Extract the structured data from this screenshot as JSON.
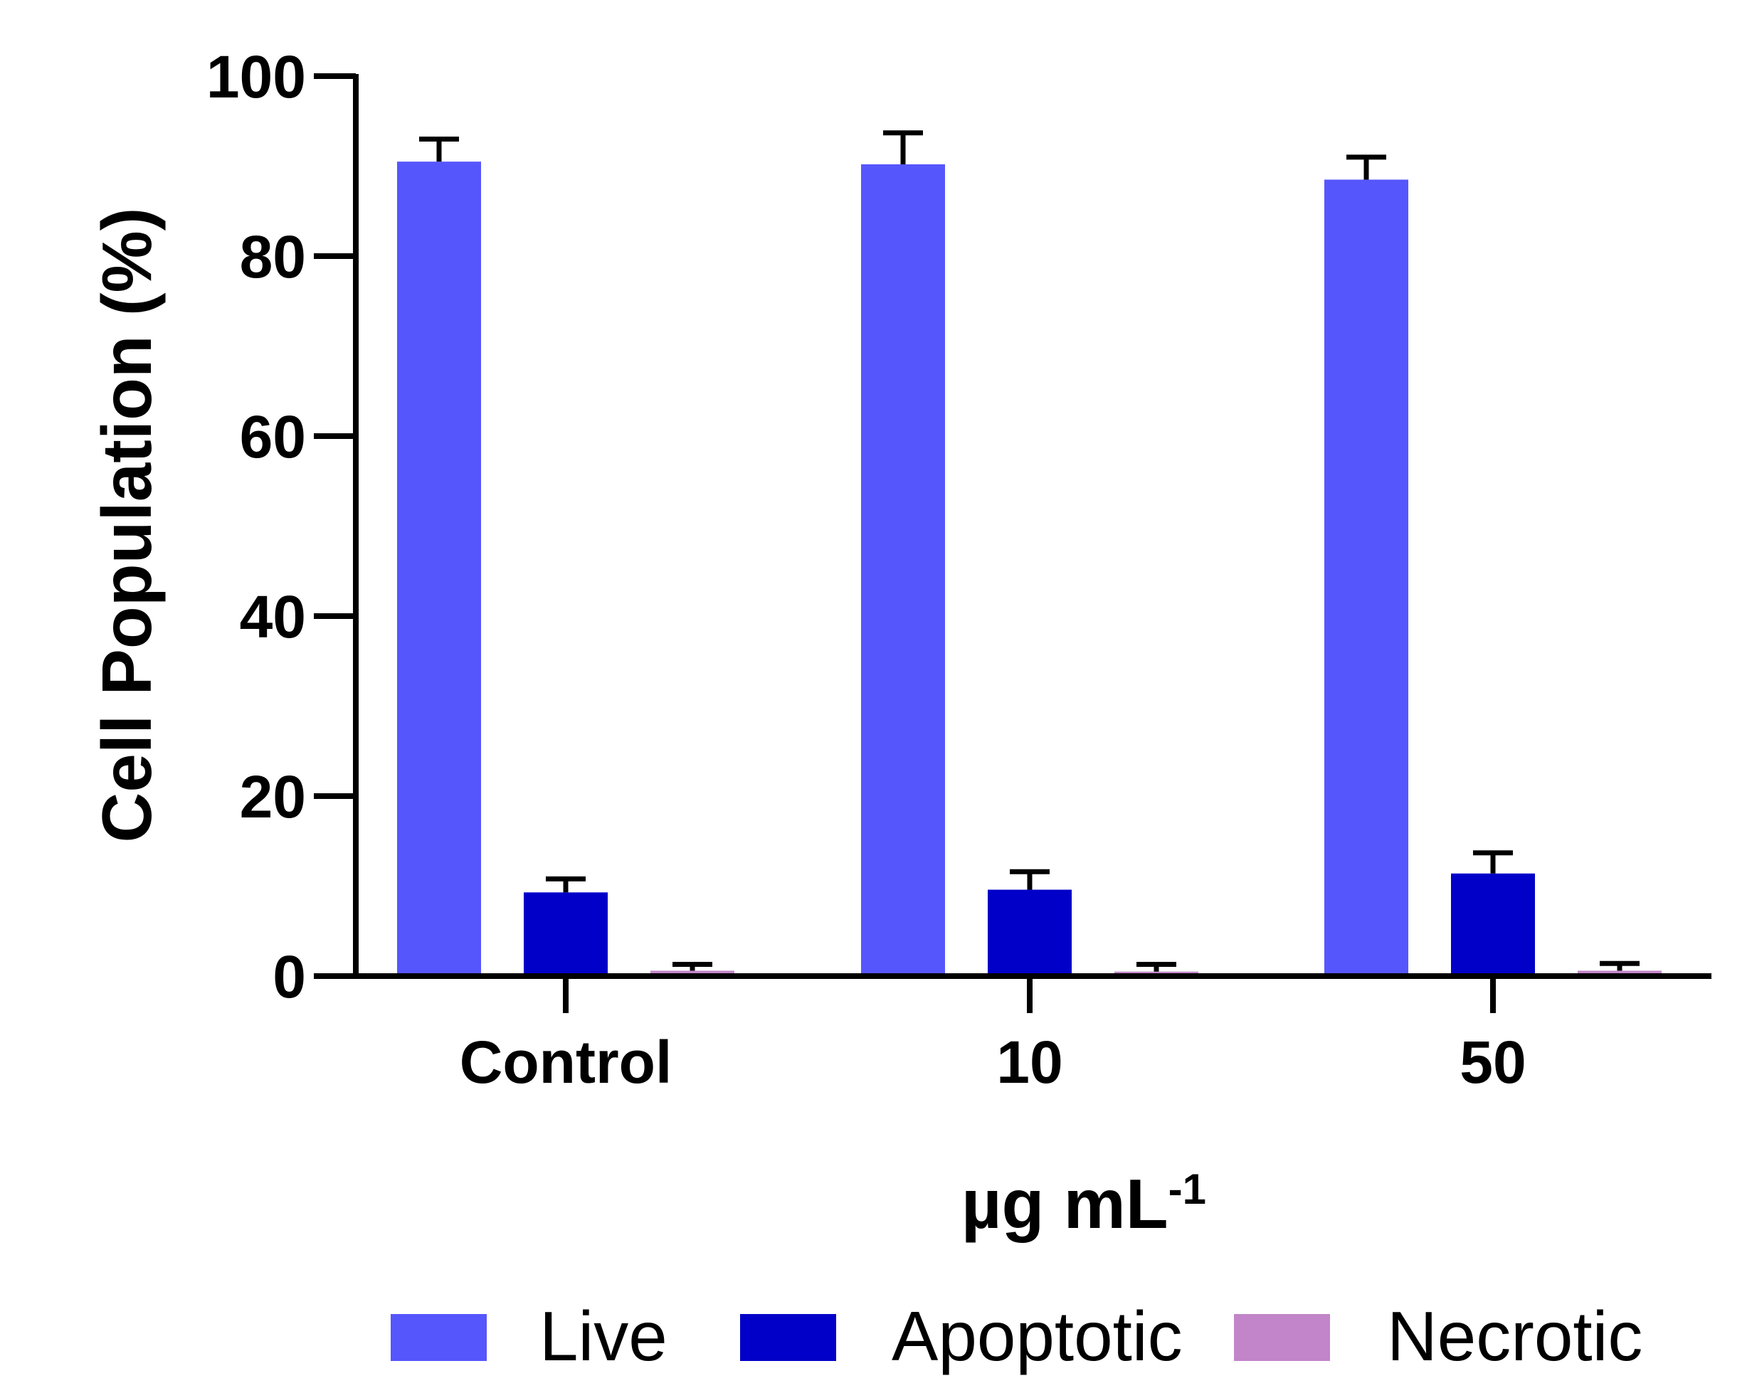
{
  "chart_data": {
    "type": "bar",
    "title": "",
    "xlabel": "µg mL",
    "xlabel_superscript": "-1",
    "ylabel": "Cell Population (%)",
    "ylim": [
      0,
      100
    ],
    "yticks": [
      "0",
      "20",
      "40",
      "60",
      "80",
      "100"
    ],
    "categories": [
      "Control",
      "10",
      "50"
    ],
    "series": [
      {
        "name": "Live",
        "color": "#5656fd",
        "values": [
          90.5,
          90.2,
          88.5
        ],
        "errors": [
          2.5,
          3.5,
          2.5
        ]
      },
      {
        "name": "Apoptotic",
        "color": "#0000c8",
        "values": [
          9.3,
          9.6,
          11.4
        ],
        "errors": [
          1.5,
          2.0,
          2.3
        ]
      },
      {
        "name": "Necrotic",
        "color": "#c285c9",
        "values": [
          0.6,
          0.5,
          0.6
        ],
        "errors": [
          0.7,
          0.8,
          0.8
        ]
      }
    ],
    "legend": {
      "position": "bottom"
    }
  }
}
